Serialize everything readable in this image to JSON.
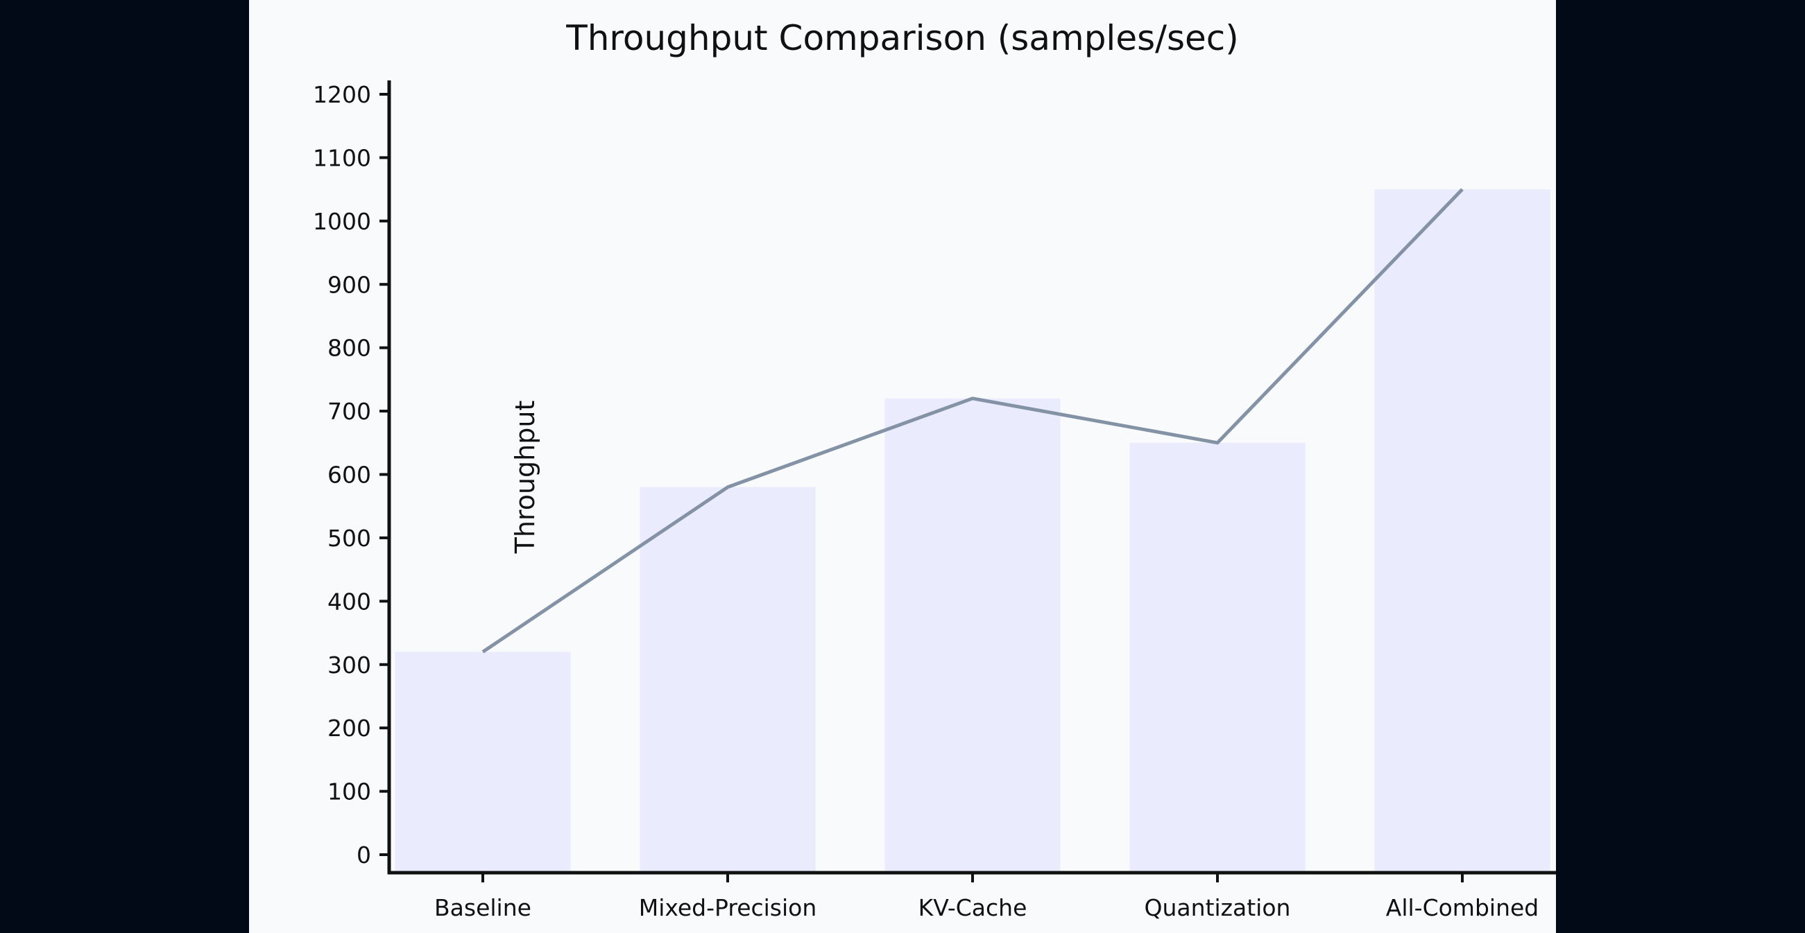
{
  "chart_data": {
    "type": "bar",
    "title": "Throughput Comparison (samples/sec)",
    "xlabel": "",
    "ylabel": "Throughput",
    "categories": [
      "Baseline",
      "Mixed-Precision",
      "KV-Cache",
      "Quantization",
      "All-Combined"
    ],
    "values": [
      320,
      580,
      720,
      650,
      1050
    ],
    "overlay_line": {
      "type": "line",
      "values": [
        320,
        580,
        720,
        650,
        1050
      ]
    },
    "ylim": [
      -25,
      1225
    ],
    "yticks": [
      0,
      100,
      200,
      300,
      400,
      500,
      600,
      700,
      800,
      900,
      1000,
      1100,
      1200
    ],
    "grid": false,
    "legend": "none",
    "colors": {
      "bar": "#ebebfe",
      "line": "#8492a6",
      "axis": "#111111",
      "panel_background": "#f8fafc",
      "page_background": "#020a17"
    }
  }
}
